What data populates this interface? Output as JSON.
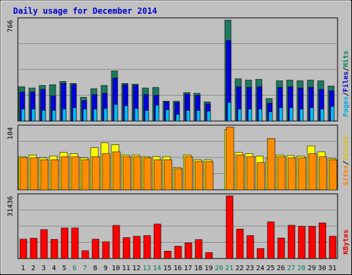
{
  "chart_data": {
    "type": "bar",
    "title": "Daily usage for December 2014",
    "days": [
      "1",
      "2",
      "3",
      "4",
      "5",
      "6",
      "7",
      "8",
      "9",
      "10",
      "11",
      "12",
      "13",
      "14",
      "15",
      "16",
      "17",
      "18",
      "19",
      "20",
      "21",
      "22",
      "23",
      "24",
      "25",
      "26",
      "27",
      "28",
      "29",
      "30",
      "31"
    ],
    "weekend_days": [
      "6",
      "7",
      "13",
      "14",
      "20",
      "21",
      "27",
      "28"
    ],
    "panels": [
      {
        "id": "hits",
        "ymax": 766,
        "ymax_label": "766",
        "right_label": [
          "Pages",
          "/",
          "Files",
          "/",
          "Hits"
        ],
        "right_label_colors": [
          "#00a8e0",
          "#000000",
          "#0000cc",
          "#000000",
          "#008060"
        ],
        "series": [
          {
            "name": "Hits",
            "color": "#1e7a5f",
            "values": [
              260,
              250,
              270,
              275,
              300,
              285,
              180,
              245,
              270,
              380,
              285,
              280,
              250,
              255,
              150,
              150,
              215,
              210,
              145,
              0,
              765,
              320,
              310,
              315,
              170,
              305,
              310,
              305,
              310,
              305,
              265
            ]
          },
          {
            "name": "Files",
            "color": "#0000dd",
            "values": [
              220,
              220,
              240,
              190,
              285,
              275,
              155,
              200,
              210,
              325,
              275,
              270,
              200,
              195,
              145,
              140,
              205,
              195,
              130,
              0,
              610,
              260,
              255,
              260,
              135,
              255,
              260,
              250,
              255,
              240,
              230
            ]
          },
          {
            "name": "Pages",
            "color": "#00bfff",
            "values": [
              90,
              90,
              80,
              80,
              90,
              100,
              90,
              90,
              95,
              125,
              115,
              95,
              80,
              120,
              85,
              50,
              80,
              80,
              75,
              0,
              140,
              90,
              90,
              90,
              70,
              100,
              100,
              90,
              100,
              90,
              110
            ]
          }
        ]
      },
      {
        "id": "visits",
        "ymax": 104,
        "ymax_label": "104",
        "right_label": [
          "Sites",
          "/",
          "Visits"
        ],
        "right_label_colors": [
          "#ff8000",
          "#000000",
          "#e0c000"
        ],
        "series": [
          {
            "name": "Visits",
            "color": "#ffff00",
            "values": [
              55,
              58,
              53,
              56,
              62,
              60,
              53,
              70,
              78,
              75,
              58,
              58,
              55,
              55,
              55,
              37,
              58,
              50,
              50,
              0,
              100,
              62,
              60,
              56,
              52,
              58,
              57,
              56,
              73,
              63,
              52
            ]
          },
          {
            "name": "Sites",
            "color": "#ff8c00",
            "values": [
              53,
              53,
              50,
              50,
              55,
              55,
              50,
              55,
              60,
              63,
              55,
              55,
              53,
              50,
              50,
              35,
              55,
              47,
              47,
              0,
              104,
              58,
              55,
              45,
              85,
              55,
              53,
              53,
              60,
              55,
              50
            ]
          }
        ]
      },
      {
        "id": "kbytes",
        "ymax": 31436,
        "ymax_label": "31436",
        "right_label": [
          "KBytes"
        ],
        "right_label_colors": [
          "#dd0000"
        ],
        "series": [
          {
            "name": "KBytes",
            "color": "#ff0000",
            "values": [
              9700,
              10200,
              14500,
              9600,
              15300,
              15300,
              3900,
              9700,
              8400,
              16600,
              10500,
              11200,
              11500,
              17300,
              3700,
              6200,
              7800,
              9500,
              3000,
              0,
              31436,
              14800,
              11500,
              5000,
              18400,
              10300,
              16700,
              16200,
              16200,
              17900,
              11200
            ]
          }
        ]
      }
    ]
  }
}
